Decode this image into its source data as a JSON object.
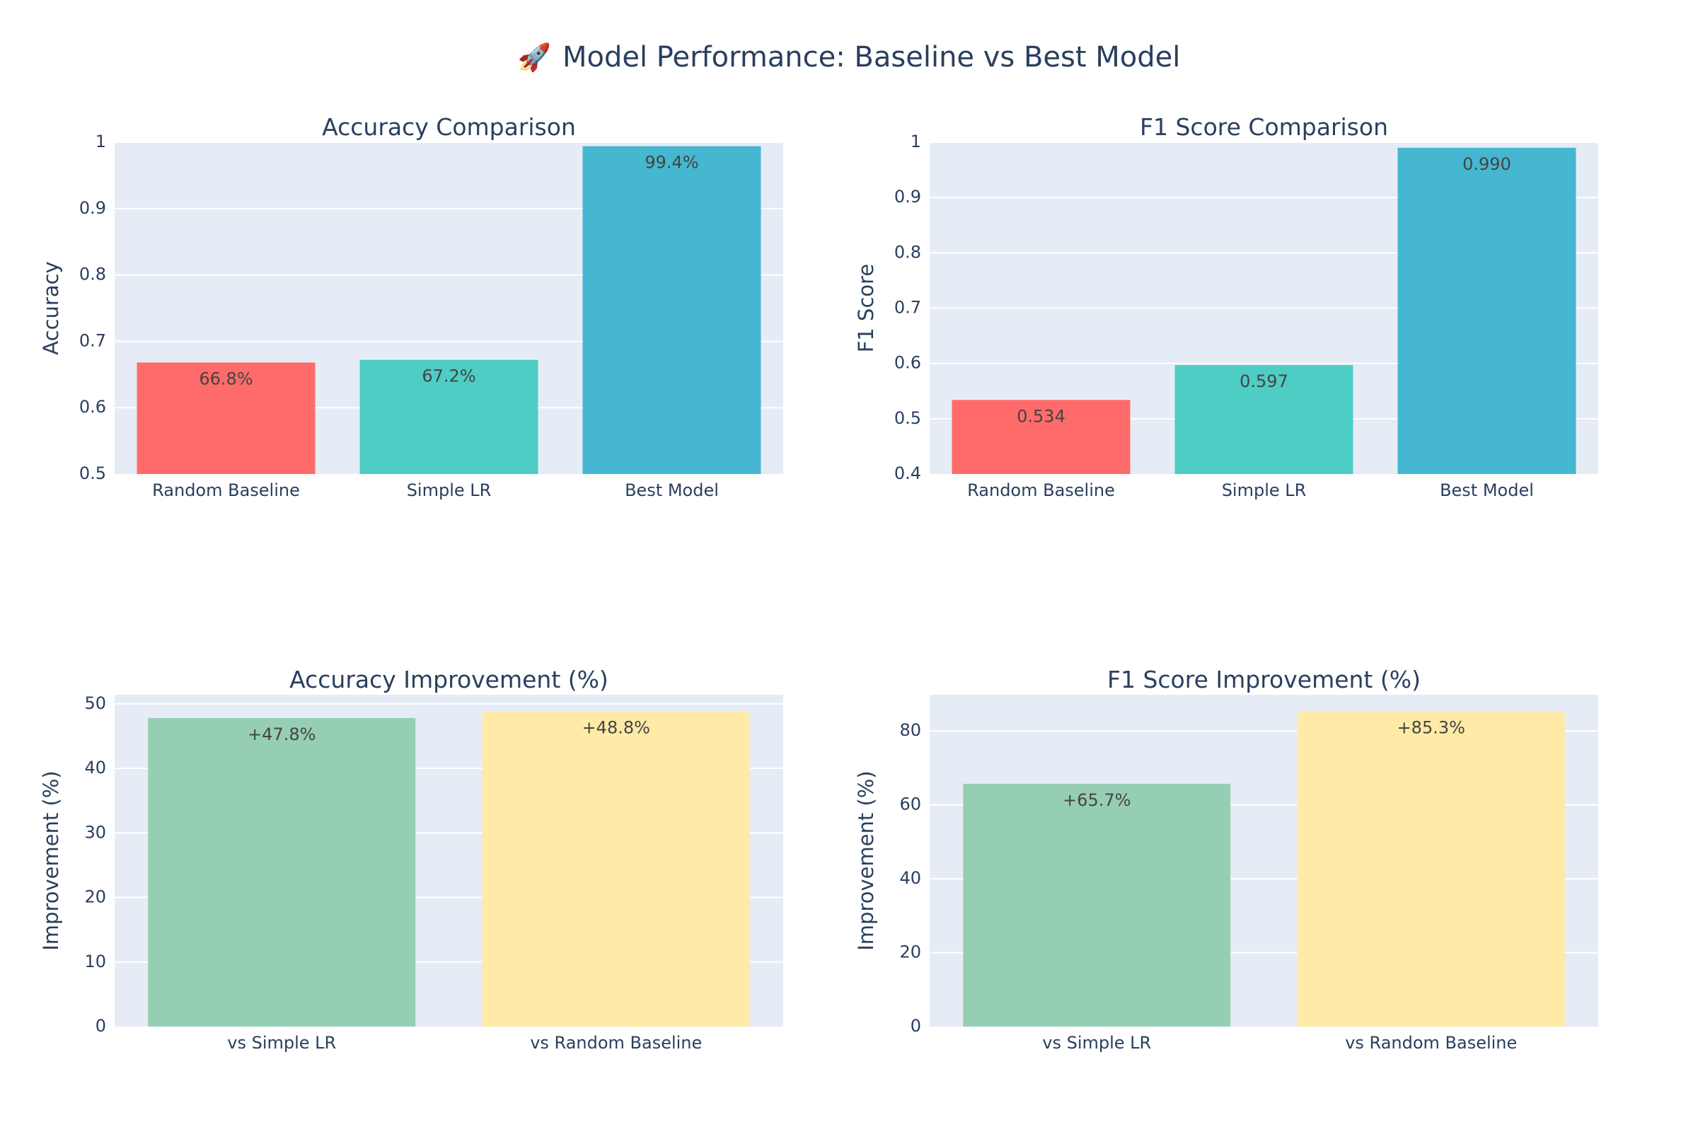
{
  "title": "Model Performance: Baseline vs Best Model",
  "title_icon": "rocket-icon",
  "colors": {
    "plot_bg": "#E5ECF6",
    "grid": "#ffffff",
    "axis_text": "#2a3f5f",
    "label_text": "#444444",
    "red": "#FF6B6B",
    "teal": "#4ECDC4",
    "blue": "#45B7D1",
    "green": "#96CEB4",
    "yellow": "#FFEAA7"
  },
  "chart_data": [
    {
      "type": "bar",
      "title": "Accuracy Comparison",
      "xlabel": "",
      "ylabel": "Accuracy",
      "categories": [
        "Random Baseline",
        "Simple LR",
        "Best Model"
      ],
      "values": [
        0.668,
        0.672,
        0.994
      ],
      "text": [
        "66.8%",
        "67.2%",
        "99.4%"
      ],
      "colors": [
        "#FF6B6B",
        "#4ECDC4",
        "#45B7D1"
      ],
      "ylim": [
        0.5,
        1
      ],
      "yticks": [
        0.5,
        0.6,
        0.7,
        0.8,
        0.9,
        1
      ],
      "ytick_labels": [
        "0.5",
        "0.6",
        "0.7",
        "0.8",
        "0.9",
        "1"
      ],
      "grid": true
    },
    {
      "type": "bar",
      "title": "F1 Score Comparison",
      "xlabel": "",
      "ylabel": "F1 Score",
      "categories": [
        "Random Baseline",
        "Simple LR",
        "Best Model"
      ],
      "values": [
        0.534,
        0.597,
        0.99
      ],
      "text": [
        "0.534",
        "0.597",
        "0.990"
      ],
      "colors": [
        "#FF6B6B",
        "#4ECDC4",
        "#45B7D1"
      ],
      "ylim": [
        0.4,
        1
      ],
      "yticks": [
        0.4,
        0.5,
        0.6,
        0.7,
        0.8,
        0.9,
        1
      ],
      "ytick_labels": [
        "0.4",
        "0.5",
        "0.6",
        "0.7",
        "0.8",
        "0.9",
        "1"
      ],
      "grid": true
    },
    {
      "type": "bar",
      "title": "Accuracy Improvement (%)",
      "xlabel": "",
      "ylabel": "Improvement (%)",
      "categories": [
        "vs Simple LR",
        "vs Random Baseline"
      ],
      "values": [
        47.8,
        48.8
      ],
      "text": [
        "+47.8%",
        "+48.8%"
      ],
      "colors": [
        "#96CEB4",
        "#FFEAA7"
      ],
      "ylim": [
        0,
        51.4
      ],
      "yticks": [
        0,
        10,
        20,
        30,
        40,
        50
      ],
      "ytick_labels": [
        "0",
        "10",
        "20",
        "30",
        "40",
        "50"
      ],
      "grid": true
    },
    {
      "type": "bar",
      "title": "F1 Score Improvement (%)",
      "xlabel": "",
      "ylabel": "Improvement (%)",
      "categories": [
        "vs Simple LR",
        "vs Random Baseline"
      ],
      "values": [
        65.7,
        85.3
      ],
      "text": [
        "+65.7%",
        "+85.3%"
      ],
      "colors": [
        "#96CEB4",
        "#FFEAA7"
      ],
      "ylim": [
        0,
        89.8
      ],
      "yticks": [
        0,
        20,
        40,
        60,
        80
      ],
      "ytick_labels": [
        "0",
        "20",
        "40",
        "60",
        "80"
      ],
      "grid": true
    }
  ]
}
